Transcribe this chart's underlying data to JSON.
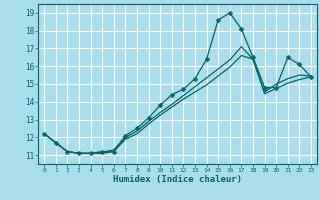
{
  "xlabel": "Humidex (Indice chaleur)",
  "bg_color": "#aaddee",
  "grid_color": "#ffffff",
  "line_color": "#006666",
  "xlim": [
    -0.5,
    23.5
  ],
  "ylim": [
    10.5,
    19.5
  ],
  "xticks": [
    0,
    1,
    2,
    3,
    4,
    5,
    6,
    7,
    8,
    9,
    10,
    11,
    12,
    13,
    14,
    15,
    16,
    17,
    18,
    19,
    20,
    21,
    22,
    23
  ],
  "yticks": [
    11,
    12,
    13,
    14,
    15,
    16,
    17,
    18,
    19
  ],
  "line1_x": [
    0,
    1,
    2,
    3,
    4,
    5,
    6,
    7,
    8,
    9,
    10,
    11,
    12,
    13,
    14,
    15,
    16,
    17,
    18,
    19,
    20,
    21,
    22,
    23
  ],
  "line1_y": [
    12.2,
    11.7,
    11.2,
    11.1,
    11.1,
    11.2,
    11.2,
    12.1,
    12.5,
    13.1,
    13.8,
    14.4,
    14.7,
    15.3,
    16.4,
    18.6,
    19.0,
    18.1,
    16.5,
    14.8,
    14.8,
    16.5,
    16.1,
    15.4
  ],
  "line2_x": [
    0,
    2,
    3,
    4,
    5,
    6,
    7,
    8,
    9,
    10,
    11,
    12,
    13,
    14,
    15,
    16,
    17,
    18,
    19,
    20,
    21,
    22,
    23
  ],
  "line2_y": [
    12.2,
    11.2,
    11.1,
    11.1,
    11.15,
    11.3,
    12.0,
    12.35,
    12.9,
    13.4,
    13.85,
    14.35,
    14.85,
    15.35,
    15.85,
    16.35,
    17.1,
    16.4,
    14.55,
    15.0,
    15.3,
    15.5,
    15.45
  ],
  "line3_x": [
    0,
    2,
    3,
    4,
    5,
    6,
    7,
    8,
    9,
    10,
    11,
    12,
    13,
    14,
    15,
    16,
    17,
    18,
    19,
    20,
    21,
    22,
    23
  ],
  "line3_y": [
    12.2,
    11.2,
    11.1,
    11.1,
    11.1,
    11.2,
    11.9,
    12.2,
    12.75,
    13.25,
    13.7,
    14.15,
    14.55,
    14.95,
    15.45,
    15.95,
    16.6,
    16.4,
    14.45,
    14.75,
    15.05,
    15.25,
    15.4
  ]
}
